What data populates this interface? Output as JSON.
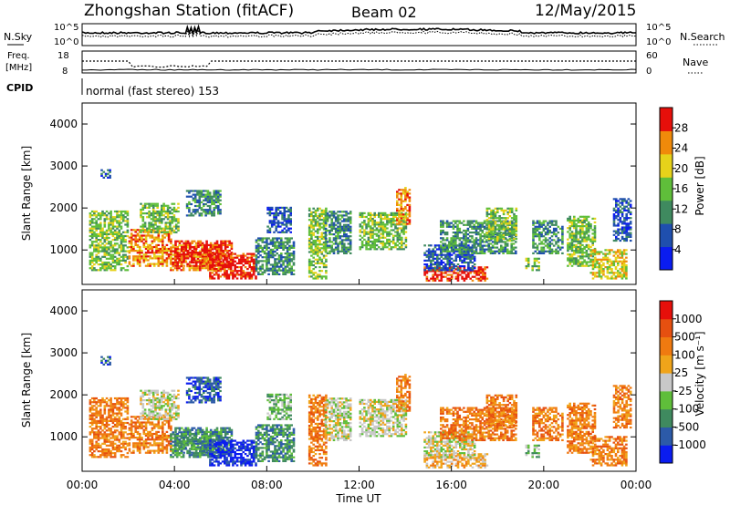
{
  "header": {
    "title": "Zhongshan Station (fitACF)",
    "beam": "Beam 02",
    "date": "12/May/2015"
  },
  "top_panels": {
    "nsky_label": "N.Sky",
    "nsky_ticks": [
      "10^5",
      "10^0"
    ],
    "nsearch_label": "N.Search",
    "nsearch_ticks": [
      "10^5",
      "10^0"
    ],
    "freq_label_1": "Freq.",
    "freq_label_2": "[MHz]",
    "freq_ticks": [
      "18",
      "8"
    ],
    "nave_label": "Nave",
    "nave_ticks": [
      "60",
      "0"
    ],
    "cpid_label": "CPID",
    "cpid_text": "normal (fast stereo) 153"
  },
  "chart_data": [
    {
      "type": "heatmap",
      "name": "power",
      "xlabel": "",
      "ylabel": "Slant Range [km]",
      "xlim": [
        0,
        24
      ],
      "ylim": [
        180,
        4500
      ],
      "y_ticks": [
        "1000",
        "2000",
        "3000",
        "4000"
      ],
      "colorbar_label": "Power [dB]",
      "colorbar_ticks": [
        "4",
        "8",
        "12",
        "16",
        "20",
        "24",
        "28"
      ],
      "colorbar_colors": [
        "#0a1cf0",
        "#1f4fae",
        "#3f8a5f",
        "#5fbe3a",
        "#e6d21a",
        "#f08a0a",
        "#e60f0a"
      ]
    },
    {
      "type": "heatmap",
      "name": "velocity",
      "xlabel": "Time UT",
      "ylabel": "Slant Range [km]",
      "xlim": [
        0,
        24
      ],
      "ylim": [
        180,
        4500
      ],
      "x_ticks": [
        "00:00",
        "04:00",
        "08:00",
        "12:00",
        "16:00",
        "20:00",
        "00:00"
      ],
      "y_ticks": [
        "1000",
        "2000",
        "3000",
        "4000"
      ],
      "colorbar_label": "Velocity [m s⁻¹]",
      "colorbar_ticks": [
        "1000",
        "500",
        "100",
        "25",
        "-25",
        "-100",
        "-500",
        "-1000"
      ],
      "colorbar_colors": [
        "#0a1cf0",
        "#2c5aa8",
        "#3f8a5f",
        "#5fbe3a",
        "#c8c8c8",
        "#f0a41a",
        "#f07a10",
        "#e65010",
        "#e60f0a"
      ]
    }
  ]
}
